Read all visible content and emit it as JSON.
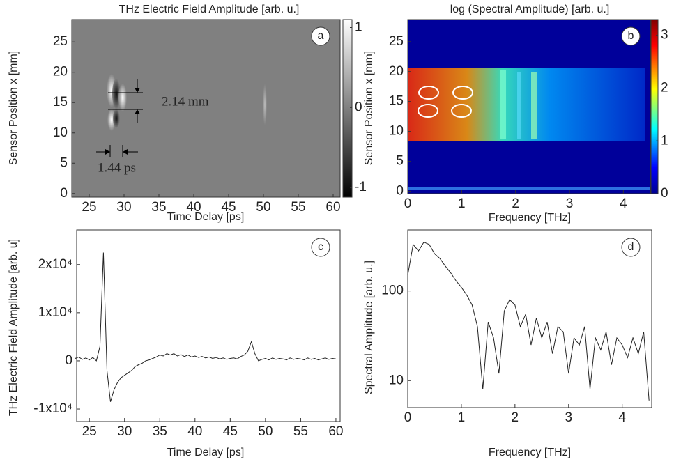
{
  "chart_data": [
    {
      "type": "heatmap",
      "title": "THz Electric Field Amplitude [arb. u.]",
      "xlabel": "Time Delay [ps]",
      "ylabel": "Sensor Position x [mm]",
      "panel_label": "a",
      "xlim": [
        22.5,
        61
      ],
      "xticks": [
        25,
        30,
        35,
        40,
        45,
        50,
        55,
        60
      ],
      "ylim": [
        -0.6,
        28.7
      ],
      "yticks": [
        0,
        5,
        10,
        15,
        20,
        25
      ],
      "colorbar": {
        "lim": [
          -1.12,
          1.1
        ],
        "ticks": [
          1,
          0,
          -1
        ]
      },
      "annotations": [
        "2.14 mm",
        "1.44 ps"
      ]
    },
    {
      "type": "heatmap",
      "title": "log (Spectral Amplitude) [arb. u.]",
      "xlabel": "Frequency [THz]",
      "ylabel": "Sensor Position x [mm]",
      "panel_label": "b",
      "xlim": [
        0,
        4.5
      ],
      "xticks": [
        0,
        1,
        2,
        3,
        4
      ],
      "ylim": [
        -0.4,
        28.7
      ],
      "yticks": [
        0,
        5,
        10,
        15,
        20,
        25
      ],
      "colorbar": {
        "lim": [
          0,
          3.3
        ],
        "ticks": [
          3,
          2,
          1,
          0
        ]
      }
    },
    {
      "type": "line",
      "xlabel": "Time Delay [ps]",
      "ylabel": "THz Electric Field Amplitude [arb. u]",
      "panel_label": "c",
      "color": "#222222",
      "xlim": [
        23.2,
        60.6
      ],
      "xticks": [
        25,
        30,
        35,
        40,
        45,
        50,
        55,
        60
      ],
      "ylim": [
        -12600,
        27200
      ],
      "yticks": [
        {
          "value": 20000,
          "label": "2x10⁴"
        },
        {
          "value": 10000,
          "label": "1x10⁴"
        },
        0,
        {
          "value": -10000,
          "label": "-1x10⁴"
        }
      ],
      "x": [
        23,
        23.5,
        24,
        24.5,
        25,
        25.5,
        26,
        26.5,
        27,
        27.5,
        28,
        28.5,
        29,
        29.5,
        30,
        30.5,
        31,
        31.5,
        32,
        32.5,
        33,
        33.5,
        34,
        34.5,
        35,
        35.5,
        36,
        36.5,
        37,
        37.5,
        38,
        38.5,
        39,
        39.5,
        40,
        40.5,
        41,
        41.5,
        42,
        42.5,
        43,
        43.5,
        44,
        44.5,
        45,
        45.5,
        46,
        46.5,
        47,
        47.5,
        48,
        48.5,
        49,
        49.5,
        50,
        50.5,
        51,
        51.5,
        52,
        52.5,
        53,
        53.5,
        54,
        54.5,
        55,
        55.5,
        56,
        56.5,
        57,
        57.5,
        58,
        58.5,
        59,
        59.5,
        60
      ],
      "values": [
        500,
        800,
        300,
        600,
        200,
        700,
        0,
        3000,
        22500,
        -2000,
        -8500,
        -6000,
        -4500,
        -3500,
        -3000,
        -2500,
        -2000,
        -1200,
        -800,
        -500,
        0,
        200,
        500,
        800,
        1200,
        1000,
        1500,
        1200,
        1500,
        1000,
        1300,
        900,
        1200,
        800,
        1000,
        700,
        900,
        600,
        800,
        500,
        700,
        400,
        600,
        300,
        500,
        600,
        400,
        900,
        1200,
        2000,
        4000,
        1500,
        0,
        300,
        500,
        200,
        600,
        300,
        500,
        400,
        200,
        600,
        300,
        500,
        400,
        200,
        600,
        300,
        500,
        200,
        400,
        600,
        300,
        500,
        400
      ]
    },
    {
      "type": "line",
      "xlabel": "Frequency [THz]",
      "ylabel": "Spectral Amplitude [arb. u.]",
      "panel_label": "d",
      "color": "#222222",
      "log_y": true,
      "xlim": [
        0,
        4.55
      ],
      "xticks": [
        0,
        1,
        2,
        3,
        4
      ],
      "ylim": [
        5,
        480
      ],
      "yticks": [
        10,
        100
      ],
      "x": [
        0,
        0.1,
        0.2,
        0.3,
        0.4,
        0.5,
        0.6,
        0.7,
        0.8,
        0.9,
        1,
        1.1,
        1.2,
        1.3,
        1.4,
        1.5,
        1.6,
        1.7,
        1.8,
        1.9,
        2,
        2.1,
        2.2,
        2.3,
        2.4,
        2.5,
        2.6,
        2.7,
        2.8,
        2.9,
        3,
        3.1,
        3.2,
        3.3,
        3.4,
        3.5,
        3.6,
        3.7,
        3.8,
        3.9,
        4,
        4.1,
        4.2,
        4.3,
        4.4,
        4.5
      ],
      "values": [
        150,
        330,
        280,
        350,
        330,
        260,
        230,
        190,
        160,
        130,
        110,
        90,
        70,
        40,
        8,
        45,
        30,
        12,
        60,
        80,
        70,
        40,
        55,
        25,
        50,
        30,
        45,
        20,
        40,
        35,
        12,
        30,
        25,
        40,
        8,
        30,
        22,
        35,
        15,
        30,
        25,
        18,
        30,
        20,
        35,
        6
      ]
    }
  ]
}
